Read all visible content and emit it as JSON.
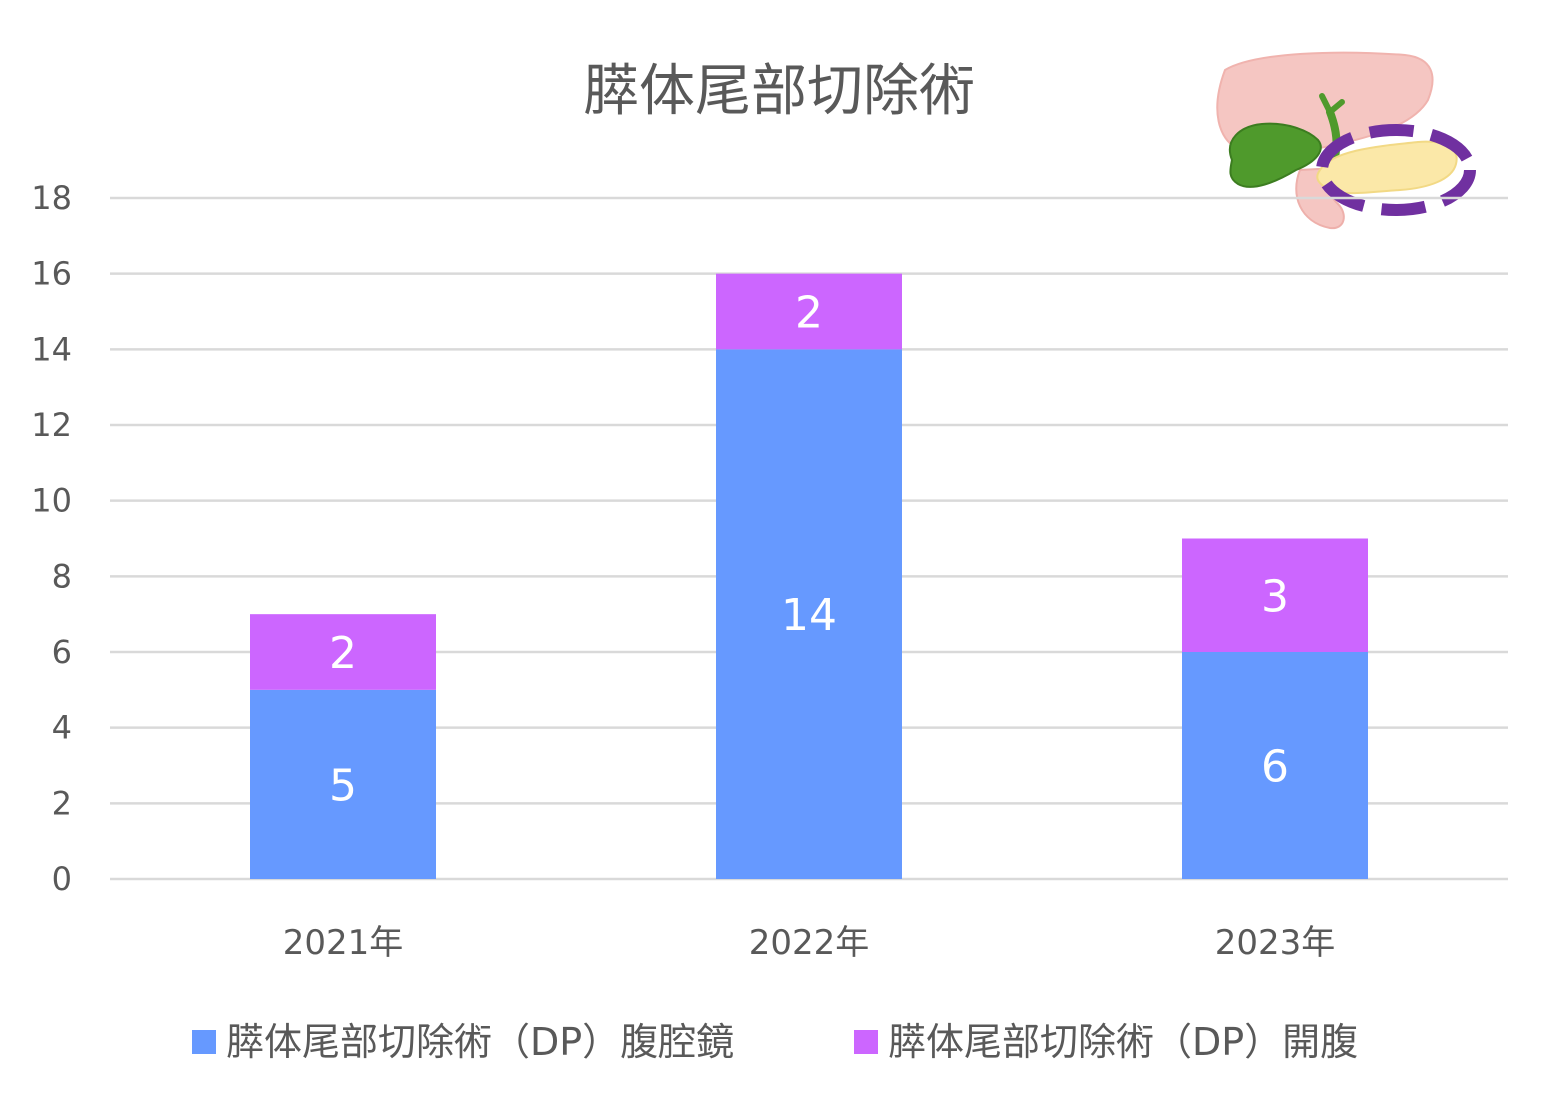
{
  "chart_data": {
    "type": "bar",
    "stacked": true,
    "title": "膵体尾部切除術",
    "categories": [
      "2021年",
      "2022年",
      "2023年"
    ],
    "series": [
      {
        "name": "膵体尾部切除術（DP）腹腔鏡",
        "values": [
          5,
          14,
          6
        ],
        "color": "#6699ff"
      },
      {
        "name": "膵体尾部切除術（DP）開腹",
        "values": [
          2,
          2,
          3
        ],
        "color": "#cc66ff"
      }
    ],
    "ylim": [
      0,
      18
    ],
    "yticks": [
      0,
      2,
      4,
      6,
      8,
      10,
      12,
      14,
      16,
      18
    ],
    "grid": true,
    "legend_position": "bottom",
    "data_labels": true,
    "illustration": "pancreas-tail-highlight-icon"
  }
}
